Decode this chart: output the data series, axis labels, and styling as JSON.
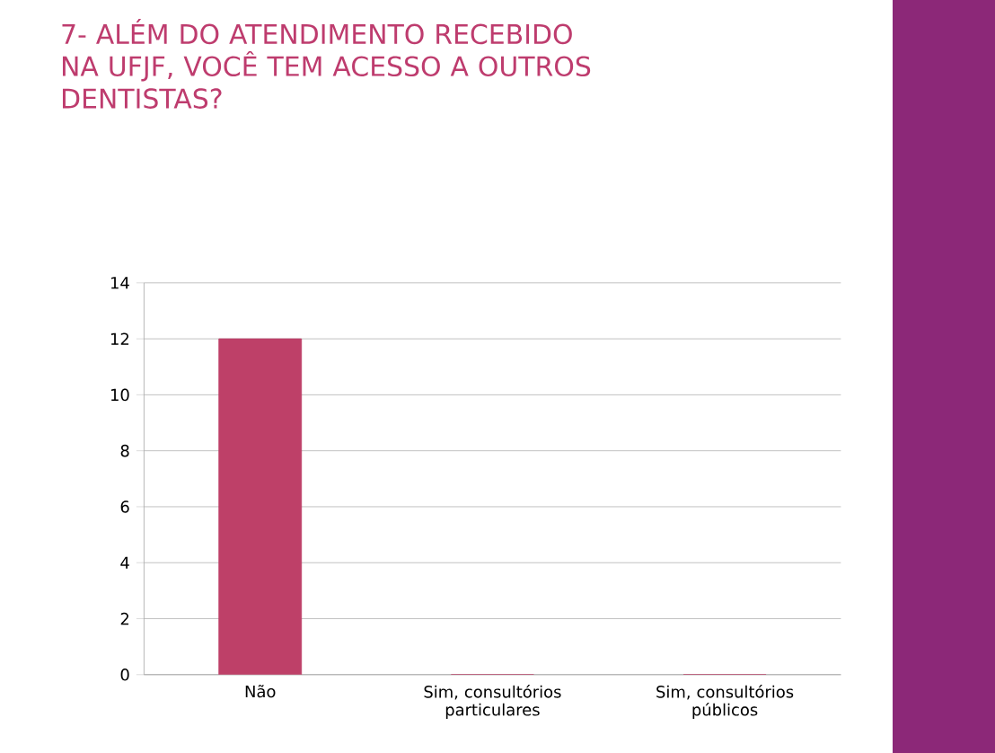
{
  "chart_data": {
    "type": "bar",
    "title": "7- ALÉM DO ATENDIMENTO RECEBIDO NA UFJF, VOCÊ TEM ACESSO A OUTROS DENTISTAS?",
    "categories": [
      "Não",
      "Sim, consultórios particulares",
      "Sim, consultórios públicos"
    ],
    "values": [
      12,
      0,
      0
    ],
    "color": "#be4068",
    "ylim": [
      0,
      14
    ],
    "yticks": [
      0,
      2,
      4,
      6,
      8,
      10,
      12,
      14
    ],
    "grid": "y"
  }
}
